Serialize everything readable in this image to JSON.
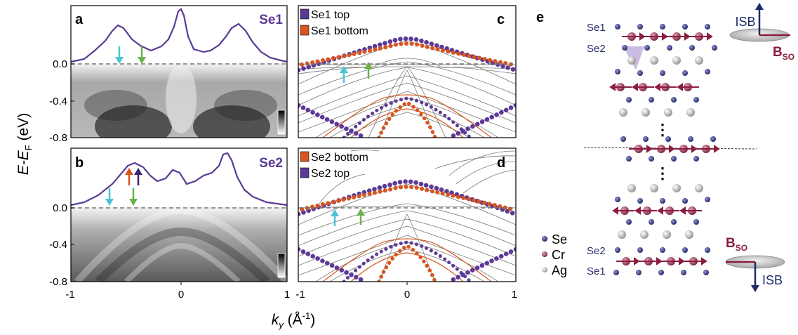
{
  "colors": {
    "purple": "#5b3a96",
    "purple_dark": "#3b2378",
    "orange": "#d8551f",
    "cyan": "#4cc3d6",
    "green": "#6ab24a",
    "crimson": "#8a1e3c",
    "navy": "#1e2a66",
    "se_atom": "#2b2f6e",
    "cr_atom": "#8d2b48",
    "ag_atom": "#b7b7b7"
  },
  "panels": {
    "a": {
      "letter": "a",
      "label": "Se1"
    },
    "b": {
      "letter": "b",
      "label": "Se2"
    },
    "c": {
      "letter": "c",
      "legend": [
        "Se1 top",
        "Se1 bottom"
      ]
    },
    "d": {
      "letter": "d",
      "legend": [
        "Se2 bottom",
        "Se2 top"
      ]
    },
    "e": {
      "letter": "e"
    }
  },
  "axes": {
    "ylabel_main": "E-E",
    "ylabel_sub": "F",
    "ylabel_unit": " (eV)",
    "xlabel_main": "k",
    "xlabel_sub": "y",
    "xlabel_unit_pre": " (Å",
    "xlabel_unit_sup": "-1",
    "xlabel_unit_post": ")",
    "x_ticks": [
      "-1",
      "0",
      "1"
    ],
    "y_ticks_top": [
      "0.0",
      "-0.4",
      "-0.8"
    ],
    "y_ticks_bottom": [
      "0.0",
      "-0.4",
      "-0.8"
    ]
  },
  "chart_data": [
    {
      "type": "line",
      "panel": "a",
      "description_none": "",
      "x": [
        -1,
        -0.6,
        -0.5,
        -0.3,
        0,
        0.3,
        0.5,
        0.6,
        1
      ],
      "xlim": [
        -1,
        1
      ],
      "ylim": [
        -0.8,
        0.15
      ]
    },
    {
      "type": "line",
      "panel": "b",
      "x": [
        -1,
        -0.6,
        -0.45,
        -0.2,
        0,
        0.2,
        0.45,
        0.6,
        1
      ],
      "xlim": [
        -1,
        1
      ],
      "ylim": [
        -0.8,
        0.15
      ]
    },
    {
      "type": "scatter",
      "panel": "c",
      "series_names": [
        "Se1 top",
        "Se1 bottom"
      ],
      "xlim": [
        -1,
        1
      ],
      "ylim": [
        -0.8,
        0.15
      ]
    },
    {
      "type": "scatter",
      "panel": "d",
      "series_names": [
        "Se2 bottom",
        "Se2 top"
      ],
      "xlim": [
        -1,
        1
      ],
      "ylim": [
        -0.8,
        0.15
      ]
    }
  ],
  "structure": {
    "se1_top": "Se1",
    "se2_top": "Se2",
    "se2_bottom": "Se2",
    "se1_bottom": "Se1",
    "legend": [
      "Se",
      "Cr",
      "Ag"
    ],
    "isb": "ISB",
    "bso_main": "B",
    "bso_sub": "SO",
    "dots": "⋮"
  }
}
